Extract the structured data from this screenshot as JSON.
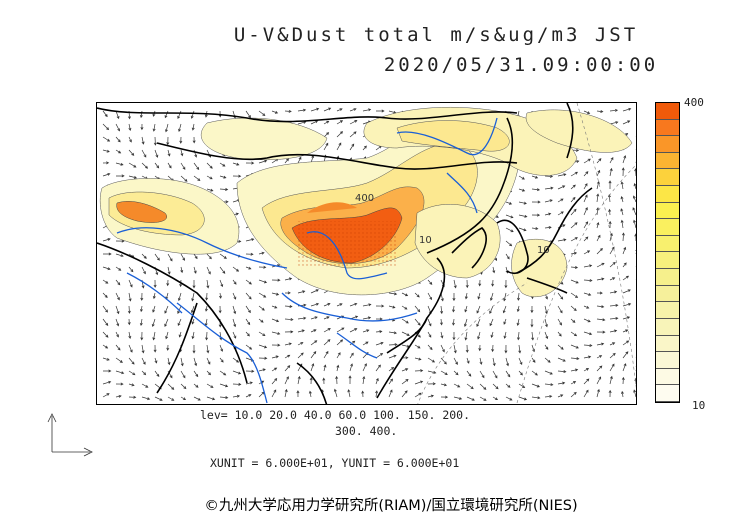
{
  "title": {
    "line1": "U-V&Dust total m/s&ug/m3 JST",
    "line2": "2020/05/31.09:00:00"
  },
  "levels": {
    "line1": "lev= 10.0 20.0 40.0 60.0 100. 150. 200.",
    "line2": "300. 400."
  },
  "units_text": "XUNIT = 6.000E+01, YUNIT = 6.000E+01",
  "colorbar": {
    "max_label": "400",
    "min_label": "10",
    "colors": [
      "#f05a0a",
      "#f8781e",
      "#fa9628",
      "#fbb432",
      "#fcd23c",
      "#fce646",
      "#fbf050",
      "#faf05f",
      "#f8f06e",
      "#f7f07d",
      "#f6f08c",
      "#f6f09b",
      "#f7f3aa",
      "#f8f4b9",
      "#faf6c8",
      "#fbf8d6",
      "#fdfae4",
      "#fefcf0"
    ]
  },
  "map_labels": [
    "400",
    "10",
    "10"
  ],
  "credit": "©九州大学応用力学研究所(RIAM)/国立環境研究所(NIES)"
}
